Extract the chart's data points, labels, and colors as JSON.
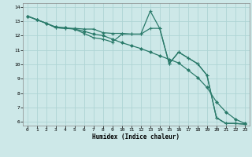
{
  "xlabel": "Humidex (Indice chaleur)",
  "bg_color": "#cde8e8",
  "grid_color": "#aed4d4",
  "line_color": "#2a7a6a",
  "xlim": [
    -0.5,
    23.5
  ],
  "ylim": [
    5.75,
    14.25
  ],
  "xticks": [
    0,
    1,
    2,
    3,
    4,
    5,
    6,
    7,
    8,
    9,
    10,
    11,
    12,
    13,
    14,
    15,
    16,
    17,
    18,
    19,
    20,
    21,
    22,
    23
  ],
  "yticks": [
    6,
    7,
    8,
    9,
    10,
    11,
    12,
    13,
    14
  ],
  "line1_x": [
    0,
    1,
    2,
    3,
    4,
    5,
    6,
    7,
    8,
    9,
    10,
    11,
    12,
    13,
    14,
    15,
    16,
    17,
    18,
    19,
    20,
    21,
    22,
    23
  ],
  "line1_y": [
    13.35,
    13.1,
    12.85,
    12.55,
    12.5,
    12.45,
    12.15,
    11.85,
    11.75,
    11.55,
    12.1,
    12.1,
    12.1,
    13.7,
    12.5,
    10.05,
    10.85,
    10.45,
    10.05,
    9.25,
    6.3,
    5.9,
    5.9,
    5.85
  ],
  "line2_x": [
    0,
    1,
    2,
    3,
    4,
    5,
    6,
    7,
    8,
    9,
    10,
    11,
    12,
    13,
    14,
    15,
    16,
    17,
    18,
    19,
    20,
    21,
    22,
    23
  ],
  "line2_y": [
    13.35,
    13.1,
    12.85,
    12.55,
    12.5,
    12.5,
    12.45,
    12.45,
    12.2,
    12.15,
    12.15,
    12.1,
    12.1,
    12.5,
    12.5,
    10.05,
    10.85,
    10.45,
    10.05,
    9.25,
    6.3,
    5.9,
    5.9,
    5.85
  ],
  "line3_x": [
    0,
    1,
    2,
    3,
    4,
    5,
    6,
    7,
    8,
    9,
    10,
    11,
    12,
    13,
    14,
    15,
    16,
    17,
    18,
    19,
    20,
    21,
    22,
    23
  ],
  "line3_y": [
    13.35,
    13.1,
    12.85,
    12.6,
    12.55,
    12.45,
    12.3,
    12.1,
    12.0,
    11.75,
    11.5,
    11.3,
    11.1,
    10.85,
    10.6,
    10.35,
    10.1,
    9.6,
    9.1,
    8.4,
    7.4,
    6.7,
    6.2,
    5.9
  ]
}
